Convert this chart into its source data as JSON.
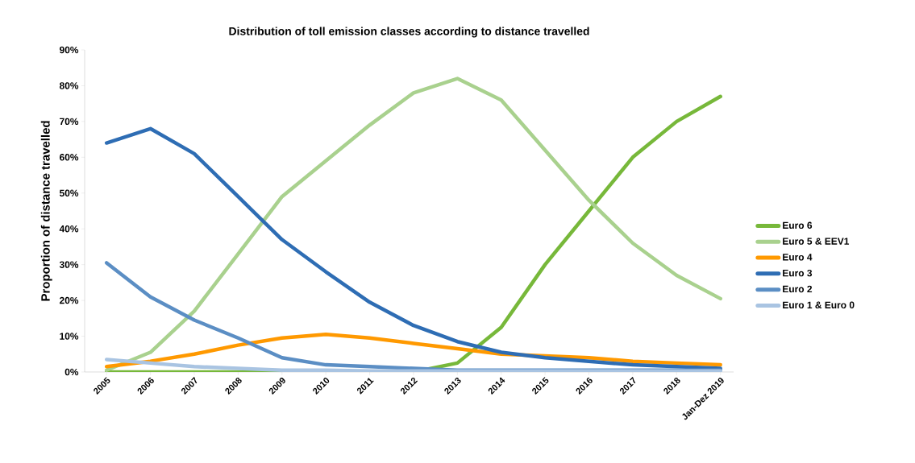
{
  "chart_data": {
    "type": "line",
    "title": "Distribution of toll emission classes according to distance travelled",
    "ylabel": "Proportion of distance travelled",
    "categories": [
      "2005",
      "2006",
      "2007",
      "2008",
      "2009",
      "2010",
      "2011",
      "2012",
      "2013",
      "2014",
      "2015",
      "2016",
      "2017",
      "2018",
      "Jan-Dez 2019"
    ],
    "series": [
      {
        "name": "Euro 6",
        "color": "#77b83a",
        "values": [
          0,
          0,
          0,
          0,
          0,
          0,
          0,
          0,
          2.5,
          12.5,
          30,
          45,
          60,
          70,
          77
        ]
      },
      {
        "name": "Euro 5 & EEV1",
        "color": "#a9d18e",
        "values": [
          0.5,
          5.5,
          17,
          33,
          49,
          59,
          69,
          78,
          82,
          76,
          62,
          48,
          36,
          27,
          20.5
        ]
      },
      {
        "name": "Euro 4",
        "color": "#ff9900",
        "values": [
          1.5,
          3,
          5,
          7.5,
          9.5,
          10.5,
          9.5,
          8,
          6.5,
          5,
          4.5,
          4,
          3,
          2.5,
          2
        ]
      },
      {
        "name": "Euro 3",
        "color": "#2e6db4",
        "values": [
          64,
          68,
          61,
          49,
          37,
          28,
          19.5,
          13,
          8.5,
          5.5,
          4,
          3,
          2,
          1.5,
          1
        ]
      },
      {
        "name": "Euro 2",
        "color": "#5b8ec4",
        "values": [
          30.5,
          21,
          14.5,
          9.5,
          4,
          2,
          1.5,
          1,
          0.5,
          0.5,
          0.5,
          0.5,
          0.5,
          0.5,
          0.5
        ]
      },
      {
        "name": "Euro 1 & Euro 0",
        "color": "#a9c4e2",
        "values": [
          3.5,
          2.5,
          1.5,
          1,
          0.5,
          0.5,
          0.3,
          0.3,
          0.3,
          0.3,
          0.3,
          0.3,
          0.3,
          0.3,
          0.3
        ]
      }
    ],
    "ylim": [
      0,
      90
    ],
    "yticks": [
      {
        "value": 0,
        "label": "0%"
      },
      {
        "value": 10,
        "label": "10%"
      },
      {
        "value": 20,
        "label": "20%"
      },
      {
        "value": 30,
        "label": "30%"
      },
      {
        "value": 40,
        "label": "40%"
      },
      {
        "value": 50,
        "label": "50%"
      },
      {
        "value": 60,
        "label": "60%"
      },
      {
        "value": 70,
        "label": "70%"
      },
      {
        "value": 80,
        "label": "80%"
      },
      {
        "value": 90,
        "label": "90%"
      }
    ],
    "grid": false,
    "legend": "right",
    "marker": "none",
    "line_style": "solid"
  }
}
